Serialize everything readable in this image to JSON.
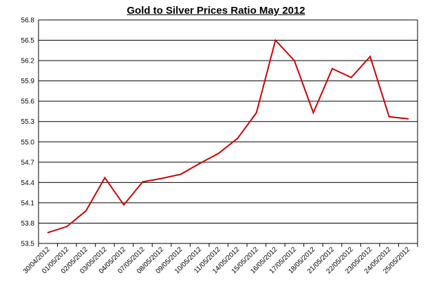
{
  "chart_data": {
    "type": "line",
    "title": "Gold to Silver Prices Ratio  May 2012",
    "xlabel": "",
    "ylabel": "",
    "ylim": [
      53.5,
      56.8
    ],
    "yticks": [
      "53.5",
      "53.8",
      "54.1",
      "54.4",
      "54.7",
      "55.0",
      "55.3",
      "55.6",
      "55.9",
      "56.2",
      "56.5",
      "56.8"
    ],
    "grid": "horizontal",
    "legend": "none",
    "line_color": "#cc0000",
    "categories": [
      "30/04/2012",
      "01/05/2012",
      "02/05/2012",
      "03/05/2012",
      "04/05/2012",
      "07/05/2012",
      "08/05/2012",
      "09/05/2012",
      "10/05/2012",
      "11/05/2012",
      "14/05/2012",
      "15/05/2012",
      "16/05/2012",
      "17/05/2012",
      "18/05/2012",
      "21/05/2012",
      "22/05/2012",
      "23/05/2012",
      "24/05/2012",
      "25/05/2012"
    ],
    "values": [
      53.66,
      53.75,
      53.98,
      54.47,
      54.07,
      54.41,
      54.46,
      54.52,
      54.68,
      54.83,
      55.05,
      55.43,
      56.5,
      56.2,
      55.43,
      56.08,
      55.95,
      56.26,
      55.37,
      55.34
    ]
  }
}
